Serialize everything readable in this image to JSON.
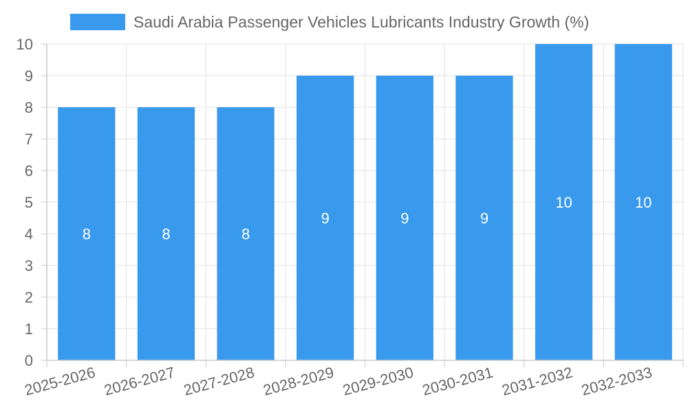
{
  "chart_data": {
    "type": "bar",
    "categories": [
      "2025-2026",
      "2026-2027",
      "2027-2028",
      "2028-2029",
      "2029-2030",
      "2030-2031",
      "2031-2032",
      "2032-2033"
    ],
    "series": [
      {
        "name": "Saudi Arabia Passenger Vehicles Lubricants Industry Growth (%)",
        "values": [
          8,
          8,
          8,
          9,
          9,
          9,
          10,
          10
        ],
        "color": "#3899ed"
      }
    ],
    "ylim": [
      0,
      10
    ],
    "yticks": [
      0,
      1,
      2,
      3,
      4,
      5,
      6,
      7,
      8,
      9,
      10
    ],
    "grid": true,
    "legend_position": "top",
    "data_labels": true,
    "title": "",
    "xlabel": "",
    "ylabel": ""
  }
}
